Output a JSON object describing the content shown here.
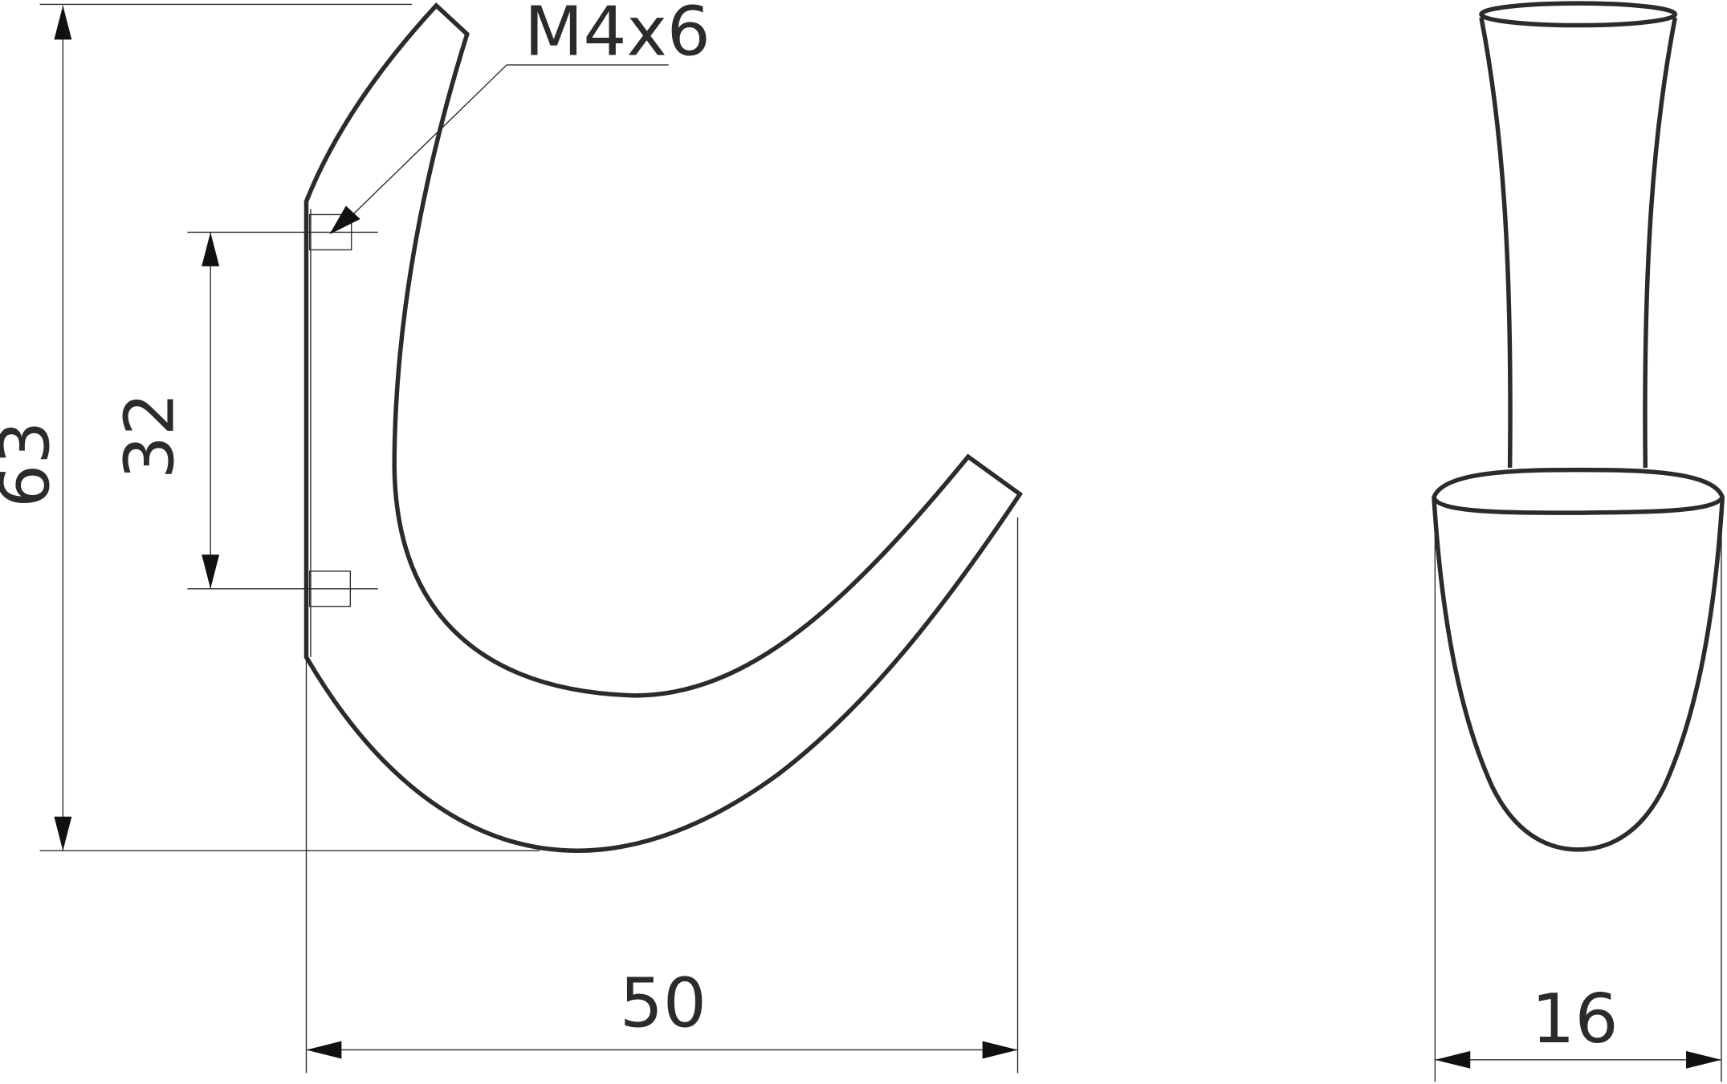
{
  "drawing": {
    "thread_callout": "M4x6",
    "dimensions": {
      "total_height": "63",
      "hole_spacing": "32",
      "projection": "50",
      "width": "16"
    },
    "line_color": "#2b2b2b",
    "background": "#ffffff"
  }
}
